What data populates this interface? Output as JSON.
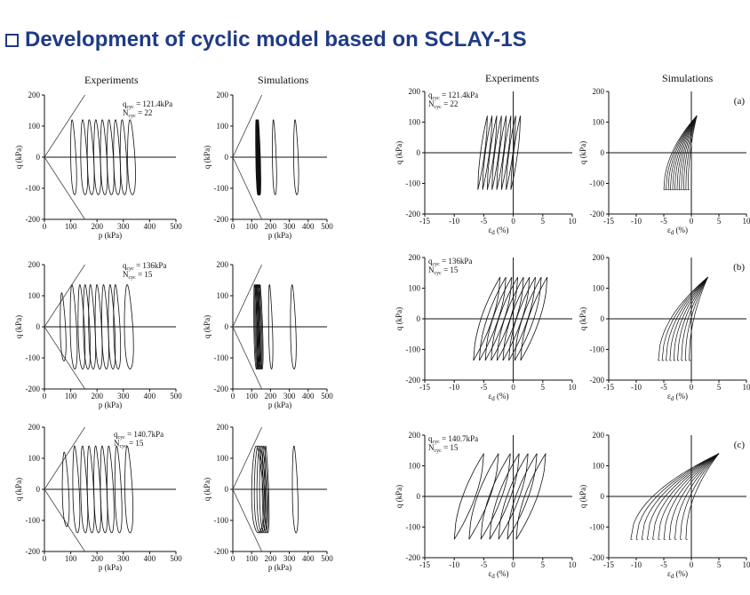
{
  "slide_title": "Development of cyclic model based on SCLAY-1S",
  "headings": {
    "left_experiments": "Experiments",
    "left_simulations": "Simulations",
    "right_experiments": "Experiments",
    "right_simulations": "Simulations"
  },
  "chart_data": [
    {
      "id": "pq-exp-a",
      "type": "line",
      "panel": "Experiments",
      "xlabel": "p (kPa)",
      "ylabel": "q (kPa)",
      "xlim": [
        0,
        500
      ],
      "ylim": [
        -200,
        200
      ],
      "xticks": [
        "0",
        "100",
        "200",
        "300",
        "400",
        "500"
      ],
      "yticks": [
        "200",
        "100",
        "0",
        "-100",
        "-200"
      ],
      "annotation": [
        "qcyc = 121.4kPa",
        "Ncyc = 22"
      ],
      "loops": {
        "centers": [
          110,
          150,
          175,
          200,
          225,
          250,
          275,
          300,
          330
        ],
        "amplitudes": [
          121,
          121,
          121,
          121,
          121,
          121,
          121,
          121,
          121
        ],
        "half_widths": [
          10,
          12,
          12,
          12,
          12,
          12,
          12,
          12,
          14
        ]
      }
    },
    {
      "id": "pq-sim-a",
      "type": "line",
      "panel": "Simulations",
      "xlabel": "p (kPa)",
      "ylabel": "q (kPa)",
      "xlim": [
        0,
        500
      ],
      "ylim": [
        -200,
        200
      ],
      "xticks": [
        "0",
        "100",
        "200",
        "300",
        "400",
        "500"
      ],
      "yticks": [
        "200",
        "100",
        "0",
        "-100",
        "-200"
      ],
      "loops": {
        "centers": [
          128,
          130,
          132,
          134,
          136,
          138,
          140,
          220,
          335
        ],
        "amplitudes": [
          121,
          121,
          121,
          121,
          121,
          121,
          121,
          121,
          121
        ],
        "half_widths": [
          6,
          6,
          6,
          6,
          6,
          6,
          6,
          10,
          12
        ]
      }
    },
    {
      "id": "eps-exp-a",
      "type": "line",
      "panel": "Experiments",
      "label": "(a)",
      "xlabel": "εd (%)",
      "ylabel": "q (kPa)",
      "xlim": [
        -15,
        10
      ],
      "ylim": [
        -200,
        200
      ],
      "xticks": [
        "-15",
        "-10",
        "-5",
        "0",
        "5",
        "10"
      ],
      "yticks": [
        "200",
        "100",
        "0",
        "-100",
        "-200"
      ],
      "annotation": [
        "qcyc = 121.4kPa",
        "Ncyc = 22"
      ],
      "hysteresis": {
        "offsets": [
          -5.2,
          -4.4,
          -3.6,
          -2.8,
          -2.0,
          -1.2,
          -0.4,
          0.4
        ],
        "width": 1.6,
        "amplitude": 121
      }
    },
    {
      "id": "eps-sim-a",
      "type": "line",
      "panel": "Simulations",
      "label": "(a)",
      "xlabel": "εd (%)",
      "ylabel": "q (kPa)",
      "xlim": [
        -15,
        10
      ],
      "ylim": [
        -200,
        200
      ],
      "xticks": [
        "-15",
        "-10",
        "-5",
        "0",
        "5",
        "10"
      ],
      "yticks": [
        "200",
        "100",
        "0",
        "-100",
        "-200"
      ],
      "fan": {
        "neg_ends": [
          -5.0,
          -4.6,
          -4.2,
          -3.8,
          -3.4,
          -3.0,
          -2.6,
          -2.2,
          -1.8,
          -1.4,
          -1.0,
          -0.6
        ],
        "pos_end": 1.0,
        "amplitude": 121
      }
    },
    {
      "id": "pq-exp-b",
      "type": "line",
      "panel": "Experiments",
      "xlabel": "p (kPa)",
      "ylabel": "q (kPa)",
      "xlim": [
        0,
        500
      ],
      "ylim": [
        -200,
        200
      ],
      "xticks": [
        "0",
        "100",
        "200",
        "300",
        "400",
        "500"
      ],
      "yticks": [
        "200",
        "100",
        "0",
        "-100",
        "-200"
      ],
      "annotation": [
        "qcyc = 136kPa",
        "Ncyc = 15"
      ],
      "loops": {
        "centers": [
          70,
          110,
          140,
          160,
          180,
          205,
          230,
          255,
          275,
          320
        ],
        "amplitudes": [
          110,
          136,
          136,
          136,
          136,
          136,
          136,
          136,
          136,
          136
        ],
        "half_widths": [
          10,
          12,
          12,
          12,
          12,
          12,
          12,
          12,
          12,
          16
        ]
      }
    },
    {
      "id": "pq-sim-b",
      "type": "line",
      "panel": "Simulations",
      "xlabel": "p (kPa)",
      "ylabel": "q (kPa)",
      "xlim": [
        0,
        500
      ],
      "ylim": [
        -200,
        200
      ],
      "xticks": [
        "0",
        "100",
        "200",
        "300",
        "400",
        "500"
      ],
      "yticks": [
        "200",
        "100",
        "0",
        "-100",
        "-200"
      ],
      "loops": {
        "centers": [
          120,
          125,
          130,
          135,
          140,
          145,
          150,
          200,
          320
        ],
        "amplitudes": [
          136,
          136,
          136,
          136,
          136,
          136,
          136,
          136,
          136
        ],
        "half_widths": [
          8,
          8,
          8,
          8,
          8,
          8,
          8,
          10,
          14
        ]
      }
    },
    {
      "id": "eps-exp-b",
      "type": "line",
      "panel": "Experiments",
      "label": "(b)",
      "xlabel": "εd (%)",
      "ylabel": "q (kPa)",
      "xlim": [
        -15,
        10
      ],
      "ylim": [
        -200,
        200
      ],
      "xticks": [
        "-15",
        "-10",
        "-5",
        "0",
        "5",
        "10"
      ],
      "yticks": [
        "200",
        "100",
        "0",
        "-100",
        "-200"
      ],
      "annotation": [
        "qcyc = 136kPa",
        "Ncyc = 15"
      ],
      "hysteresis": {
        "offsets": [
          -4.5,
          -3.5,
          -2.5,
          -1.5,
          -0.5,
          0.5,
          1.5,
          2.5,
          3.5
        ],
        "width": 4.5,
        "amplitude": 136
      }
    },
    {
      "id": "eps-sim-b",
      "type": "line",
      "panel": "Simulations",
      "label": "(b)",
      "xlabel": "εd (%)",
      "ylabel": "q (kPa)",
      "xlim": [
        -15,
        10
      ],
      "ylim": [
        -200,
        200
      ],
      "xticks": [
        "-15",
        "-10",
        "-5",
        "0",
        "5",
        "10"
      ],
      "yticks": [
        "200",
        "100",
        "0",
        "-100",
        "-200"
      ],
      "fan": {
        "neg_ends": [
          -6.0,
          -5.3,
          -4.6,
          -3.9,
          -3.2,
          -2.5,
          -1.8,
          -1.1,
          -0.4
        ],
        "pos_end": 3.0,
        "amplitude": 136
      }
    },
    {
      "id": "pq-exp-c",
      "type": "line",
      "panel": "Experiments",
      "xlabel": "p (kPa)",
      "ylabel": "q (kPa)",
      "xlim": [
        0,
        500
      ],
      "ylim": [
        -200,
        200
      ],
      "xticks": [
        "0",
        "100",
        "200",
        "300",
        "400",
        "500"
      ],
      "yticks": [
        "200",
        "100",
        "0",
        "-100",
        "-200"
      ],
      "annotation": [
        "qcyc = 140.7kPa",
        "Ncyc = 15"
      ],
      "loops": {
        "centers": [
          80,
          120,
          150,
          175,
          200,
          225,
          250,
          280,
          320
        ],
        "amplitudes": [
          120,
          140,
          140,
          140,
          140,
          140,
          140,
          140,
          140
        ],
        "half_widths": [
          12,
          12,
          12,
          12,
          12,
          12,
          12,
          12,
          14
        ]
      }
    },
    {
      "id": "pq-sim-c",
      "type": "line",
      "panel": "Simulations",
      "xlabel": "p (kPa)",
      "ylabel": "q (kPa)",
      "xlim": [
        0,
        500
      ],
      "ylim": [
        -200,
        200
      ],
      "xticks": [
        "0",
        "100",
        "200",
        "300",
        "400",
        "500"
      ],
      "yticks": [
        "200",
        "100",
        "0",
        "-100",
        "-200"
      ],
      "loops": {
        "centers": [
          130,
          140,
          150,
          160,
          170,
          180,
          330
        ],
        "amplitudes": [
          140,
          140,
          140,
          140,
          140,
          140,
          140
        ],
        "half_widths": [
          30,
          26,
          22,
          18,
          14,
          10,
          14
        ]
      }
    },
    {
      "id": "eps-exp-c",
      "type": "line",
      "panel": "Experiments",
      "label": "(c)",
      "xlabel": "εd (%)",
      "ylabel": "q (kPa)",
      "xlim": [
        -15,
        10
      ],
      "ylim": [
        -200,
        200
      ],
      "xticks": [
        "-15",
        "-10",
        "-5",
        "0",
        "5",
        "10"
      ],
      "yticks": [
        "200",
        "100",
        "0",
        "-100",
        "-200"
      ],
      "annotation": [
        "qcyc = 140.7kPa",
        "Ncyc = 15"
      ],
      "hysteresis": {
        "offsets": [
          -7.5,
          -5.0,
          -3.0,
          -1.5,
          0.0,
          1.5,
          3.0
        ],
        "width": 5.0,
        "amplitude": 140
      }
    },
    {
      "id": "eps-sim-c",
      "type": "line",
      "panel": "Simulations",
      "label": "(c)",
      "xlabel": "εd (%)",
      "ylabel": "q (kPa)",
      "xlim": [
        -15,
        10
      ],
      "ylim": [
        -200,
        200
      ],
      "xticks": [
        "-15",
        "-10",
        "-5",
        "0",
        "5",
        "10"
      ],
      "yticks": [
        "200",
        "100",
        "0",
        "-100",
        "-200"
      ],
      "fan": {
        "neg_ends": [
          -11.0,
          -10.0,
          -9.0,
          -8.0,
          -7.0,
          -6.0,
          -5.0,
          -4.0,
          -3.0,
          -2.0,
          -1.0
        ],
        "pos_end": 5.0,
        "amplitude": 140
      }
    }
  ]
}
